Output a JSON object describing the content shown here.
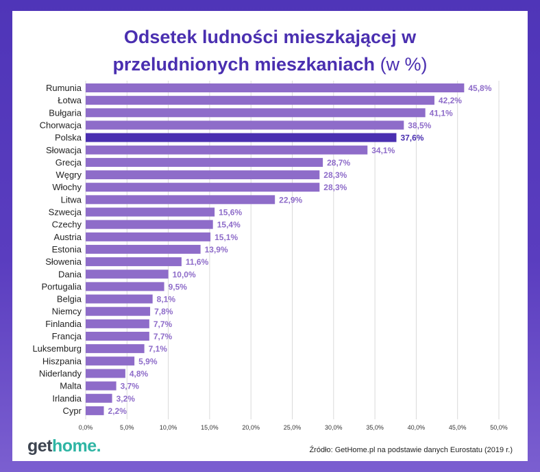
{
  "chart_data": {
    "type": "bar",
    "orientation": "horizontal",
    "title_line1": "Odsetek ludności mieszkającej w",
    "title_line2": "przeludnionych mieszkaniach",
    "title_unit": "(w %)",
    "categories": [
      "Rumunia",
      "Łotwa",
      "Bułgaria",
      "Chorwacja",
      "Polska",
      "Słowacja",
      "Grecja",
      "Węgry",
      "Włochy",
      "Litwa",
      "Szwecja",
      "Czechy",
      "Austria",
      "Estonia",
      "Słowenia",
      "Dania",
      "Portugalia",
      "Belgia",
      "Niemcy",
      "Finlandia",
      "Francja",
      "Luksemburg",
      "Hiszpania",
      "Niderlandy",
      "Malta",
      "Irlandia",
      "Cypr"
    ],
    "values": [
      45.8,
      42.2,
      41.1,
      38.5,
      37.6,
      34.1,
      28.7,
      28.3,
      28.3,
      22.9,
      15.6,
      15.4,
      15.1,
      13.9,
      11.6,
      10.0,
      9.5,
      8.1,
      7.8,
      7.7,
      7.7,
      7.1,
      5.9,
      4.8,
      3.7,
      3.2,
      2.2
    ],
    "value_labels": [
      "45,8%",
      "42,2%",
      "41,1%",
      "38,5%",
      "37,6%",
      "34,1%",
      "28,7%",
      "28,3%",
      "28,3%",
      "22,9%",
      "15,6%",
      "15,4%",
      "15,1%",
      "13,9%",
      "11,6%",
      "10,0%",
      "9,5%",
      "8,1%",
      "7,8%",
      "7,7%",
      "7,7%",
      "7,1%",
      "5,9%",
      "4,8%",
      "3,7%",
      "3,2%",
      "2,2%"
    ],
    "highlight": "Polska",
    "xlim": [
      0,
      50
    ],
    "xticks": [
      0,
      5,
      10,
      15,
      20,
      25,
      30,
      35,
      40,
      45,
      50
    ],
    "xtick_labels": [
      "0,0%",
      "5,0%",
      "10,0%",
      "15,0%",
      "20,0%",
      "25,0%",
      "30,0%",
      "35,0%",
      "40,0%",
      "45,0%",
      "50,0%"
    ],
    "grid": true,
    "colors": {
      "bar": "#8e6cc9",
      "highlight": "#4a2fb0",
      "label": "#8e6cc9",
      "title": "#4a2fb0"
    }
  },
  "logo": {
    "get": "get",
    "home": "home."
  },
  "source": "Źródło: GetHome.pl na podstawie danych Eurostatu (2019 r.)"
}
